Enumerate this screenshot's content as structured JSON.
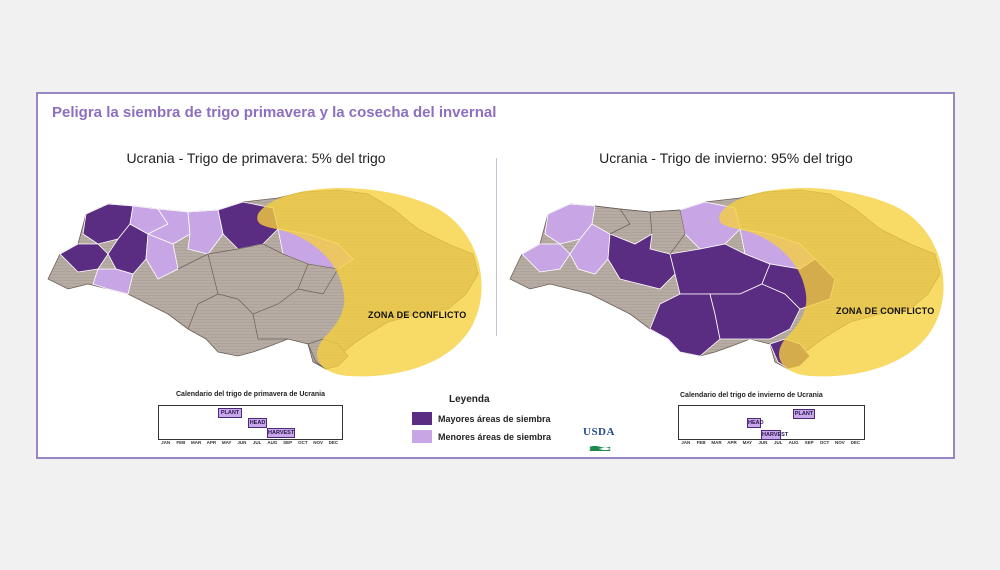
{
  "title": "Peligra la siembra de trigo primavera y la cosecha del invernal",
  "maps": [
    {
      "title": "Ucrania - Trigo de primavera: 5% del trigo",
      "conflict_label": "ZONA DE CONFLICTO",
      "calendar": {
        "title": "Calendario del trigo de primavera de Ucrania",
        "months": [
          "JAN",
          "FEB",
          "MAR",
          "APR",
          "MAY",
          "JUN",
          "JUL",
          "AUG",
          "SEP",
          "OCT",
          "NOV",
          "DEC"
        ],
        "bars": [
          {
            "label": "PLANT",
            "start_month": 4,
            "end_month": 5
          },
          {
            "label": "HEAD",
            "start_month": 6,
            "end_month": 7
          },
          {
            "label": "HARVEST",
            "start_month": 7,
            "end_month": 9
          }
        ]
      }
    },
    {
      "title": "Ucrania - Trigo de invierno: 95% del trigo",
      "conflict_label": "ZONA DE CONFLICTO",
      "calendar": {
        "title": "Calendario del trigo de invierno de Ucrania",
        "months": [
          "JAN",
          "FEB",
          "MAR",
          "APR",
          "MAY",
          "JUN",
          "JUL",
          "AUG",
          "SEP",
          "OCT",
          "NOV",
          "DEC"
        ],
        "bars": [
          {
            "label": "PLANT",
            "start_month": 8,
            "end_month": 9
          },
          {
            "label": "HEAD",
            "start_month": 5,
            "end_month": 6
          },
          {
            "label": "HARVEST",
            "start_month": 6,
            "end_month": 7
          }
        ]
      }
    }
  ],
  "legend": {
    "title": "Leyenda",
    "items": [
      {
        "label": "Mayores áreas de siembra",
        "color": "#5a2d82"
      },
      {
        "label": "Menores áreas de siembra",
        "color": "#c8a6e6"
      }
    ]
  },
  "logo": "USDA",
  "colors": {
    "major": "#5a2d82",
    "minor": "#c8a6e6",
    "none": "#b7aca3",
    "conflict": "#f6cf3c",
    "accent": "#9b86c4"
  }
}
